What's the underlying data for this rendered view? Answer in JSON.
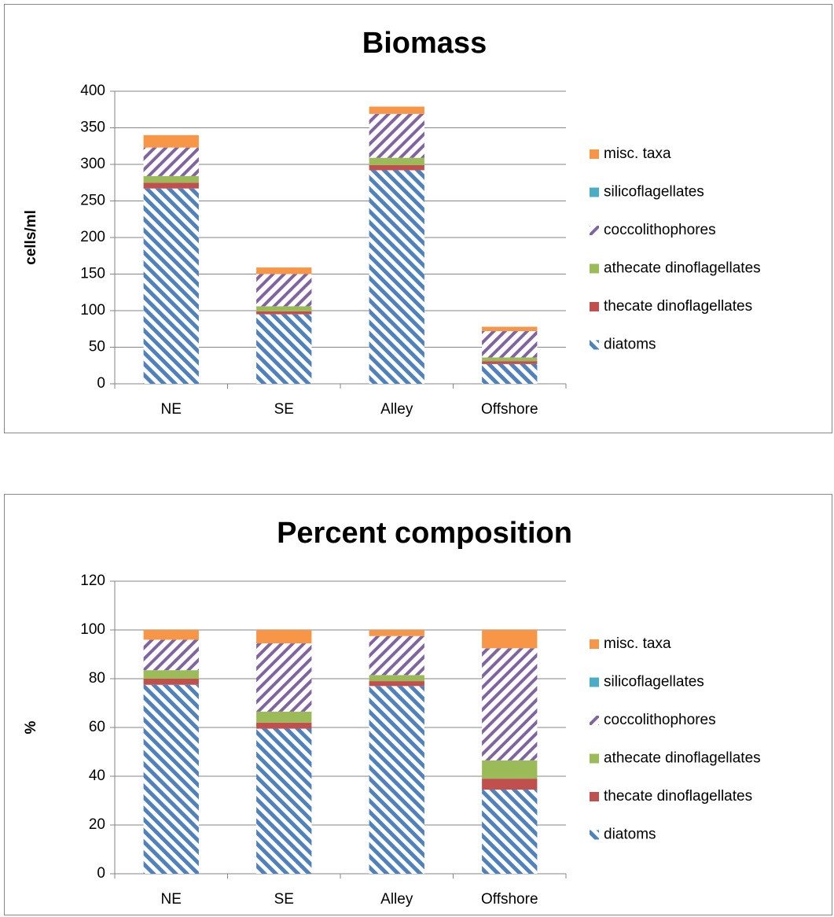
{
  "chart_data": [
    {
      "type": "bar",
      "stacked": true,
      "title": "Biomass",
      "y_label": "cells/ml",
      "categories": [
        "NE",
        "SE",
        "Alley",
        "Offshore"
      ],
      "series": [
        {
          "name": "diatoms",
          "color": "#4f81bd",
          "pattern": "stripes-down",
          "values": [
            267,
            95,
            292,
            27
          ]
        },
        {
          "name": "thecate dinoflagellates",
          "color": "#c0504d",
          "values": [
            8,
            4,
            7,
            4
          ]
        },
        {
          "name": "athecate dinoflagellates",
          "color": "#9bbb59",
          "values": [
            9,
            7,
            10,
            5
          ]
        },
        {
          "name": "coccolithophores",
          "color": "#8064a2",
          "pattern": "stripes-up",
          "values": [
            39,
            44,
            60,
            36
          ]
        },
        {
          "name": "silicoflagellates",
          "color": "#4bacc6",
          "values": [
            0,
            0,
            0,
            0
          ]
        },
        {
          "name": "misc. taxa",
          "color": "#f79646",
          "values": [
            17,
            9,
            10,
            6
          ]
        }
      ],
      "ylim": [
        0,
        400
      ],
      "yticks": [
        0,
        50,
        100,
        150,
        200,
        250,
        300,
        350,
        400
      ],
      "grid": true,
      "legend": "right"
    },
    {
      "type": "bar",
      "stacked": true,
      "title": "Percent composition",
      "y_label": "%",
      "categories": [
        "NE",
        "SE",
        "Alley",
        "Offshore"
      ],
      "series": [
        {
          "name": "diatoms",
          "color": "#4f81bd",
          "pattern": "stripes-down",
          "values": [
            77.5,
            59.5,
            77,
            34.5
          ]
        },
        {
          "name": "thecate dinoflagellates",
          "color": "#c0504d",
          "values": [
            2.5,
            2.5,
            2,
            4.5
          ]
        },
        {
          "name": "athecate dinoflagellates",
          "color": "#9bbb59",
          "values": [
            3.5,
            4.5,
            2.5,
            7.5
          ]
        },
        {
          "name": "coccolithophores",
          "color": "#8064a2",
          "pattern": "stripes-up",
          "values": [
            12.5,
            28,
            16,
            46
          ]
        },
        {
          "name": "silicoflagellates",
          "color": "#4bacc6",
          "values": [
            0,
            0,
            0,
            0
          ]
        },
        {
          "name": "misc. taxa",
          "color": "#f79646",
          "values": [
            4,
            5.5,
            2.5,
            7.5
          ]
        }
      ],
      "ylim": [
        0,
        120
      ],
      "yticks": [
        0,
        20,
        40,
        60,
        80,
        100,
        120
      ],
      "grid": true,
      "legend": "right"
    }
  ]
}
